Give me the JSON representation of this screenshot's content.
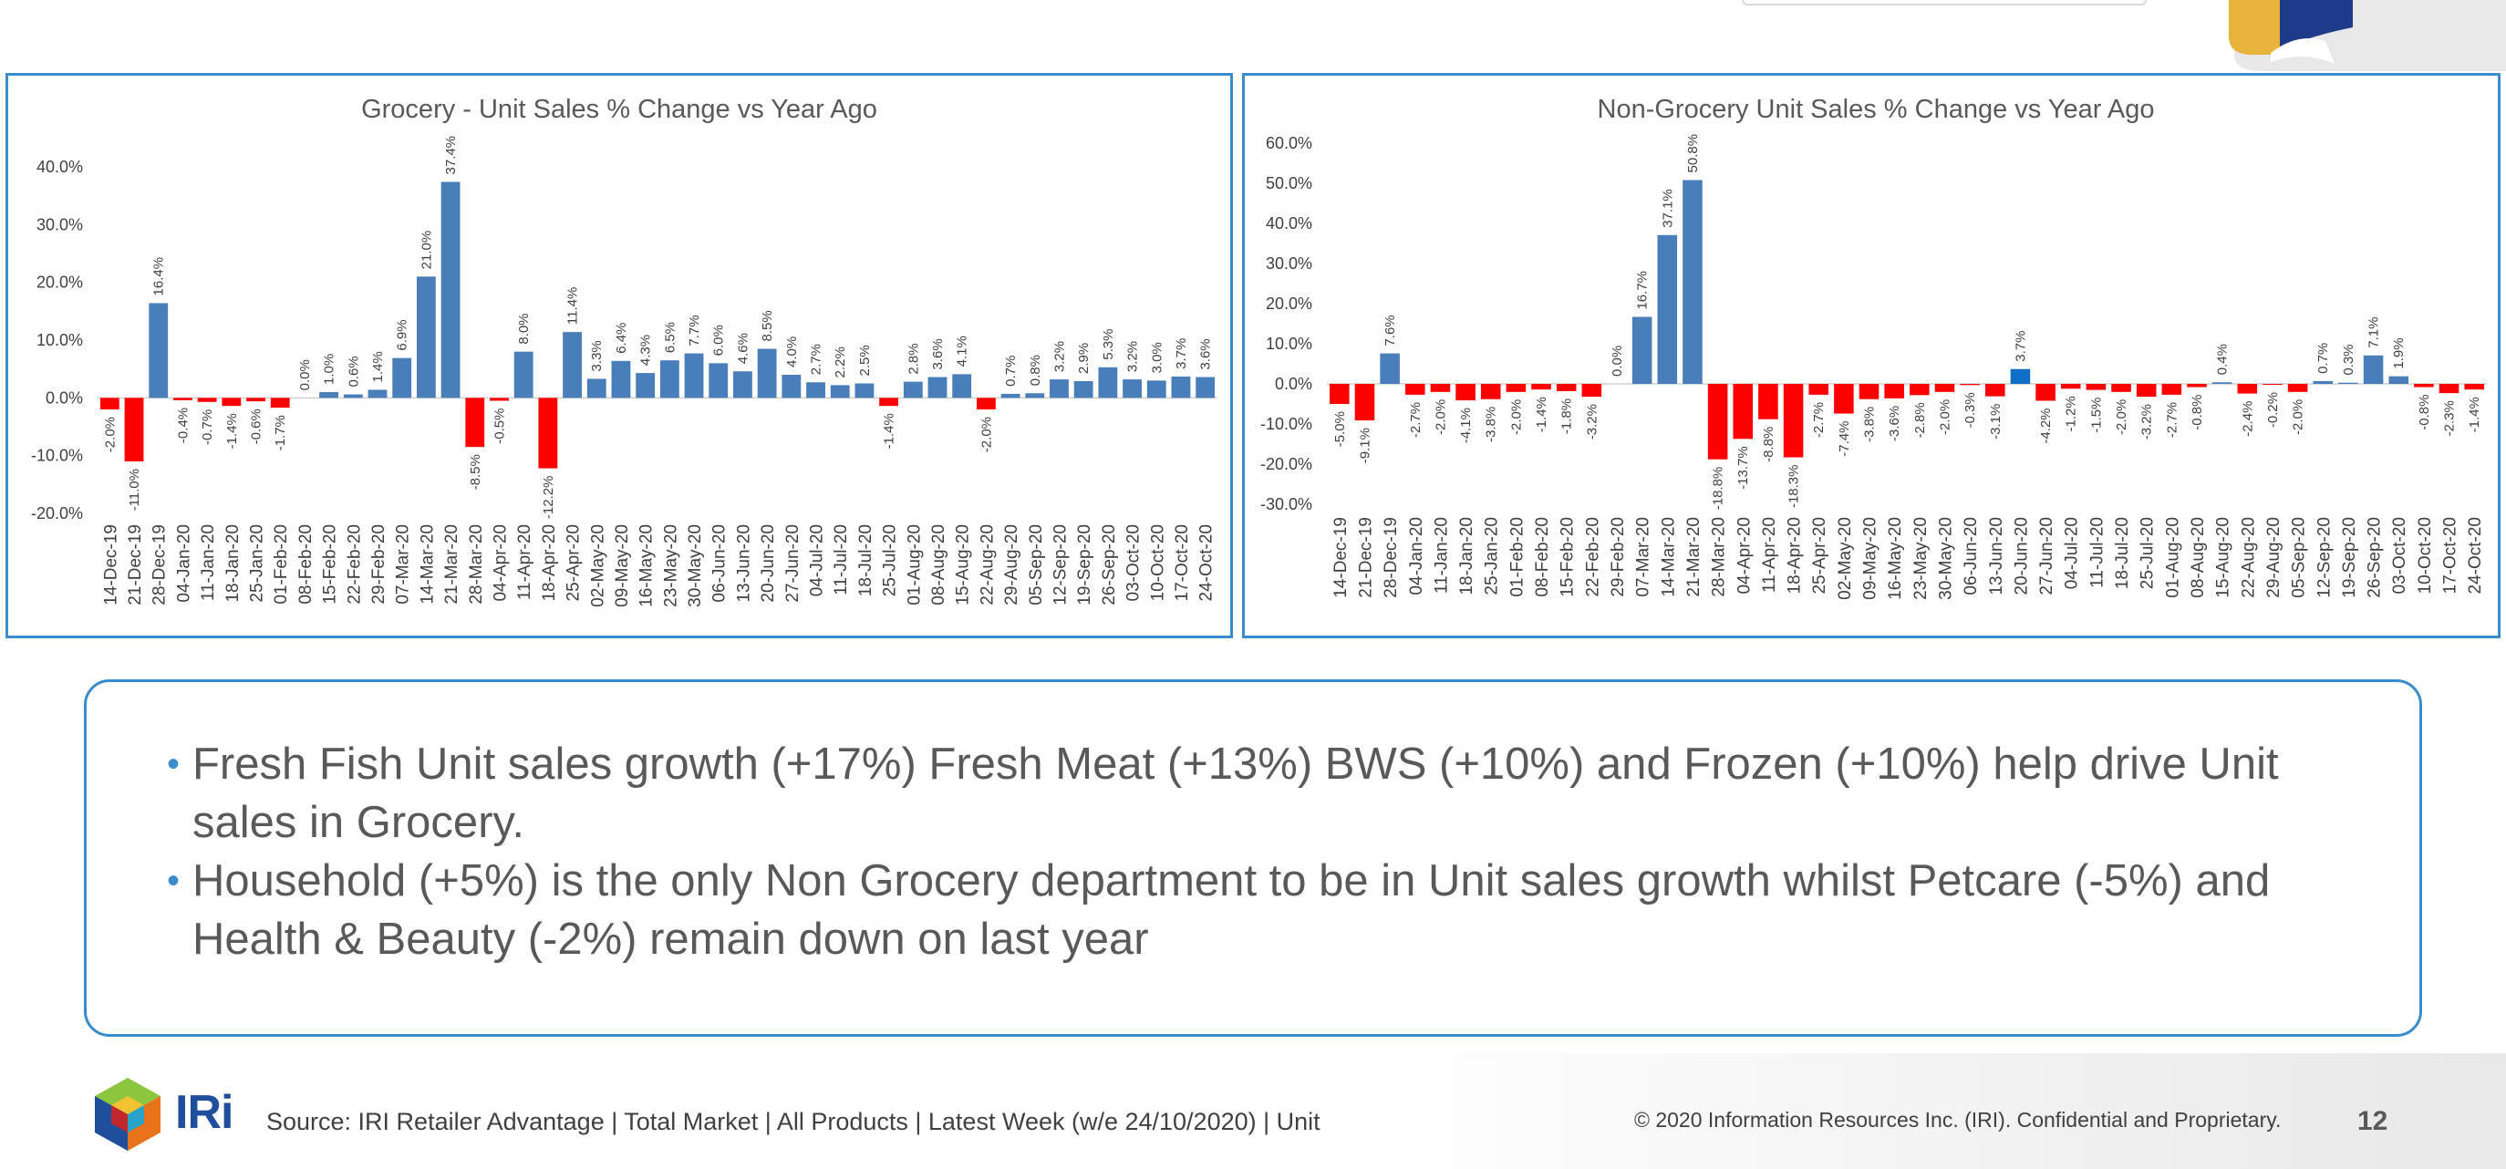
{
  "chart_data": [
    {
      "type": "bar",
      "title": "Grocery - Unit Sales % Change vs Year Ago",
      "ylim": [
        -20,
        40
      ],
      "yticks": [
        "-20.0%",
        "-10.0%",
        "0.0%",
        "10.0%",
        "20.0%",
        "30.0%",
        "40.0%"
      ],
      "ytick_values": [
        -20,
        -10,
        0,
        10,
        20,
        30,
        40
      ],
      "grid": false,
      "colors": {
        "positive": "#4a7ebb",
        "negative": "#ff0000"
      },
      "categories": [
        "14-Dec-19",
        "21-Dec-19",
        "28-Dec-19",
        "04-Jan-20",
        "11-Jan-20",
        "18-Jan-20",
        "25-Jan-20",
        "01-Feb-20",
        "08-Feb-20",
        "15-Feb-20",
        "22-Feb-20",
        "29-Feb-20",
        "07-Mar-20",
        "14-Mar-20",
        "21-Mar-20",
        "28-Mar-20",
        "04-Apr-20",
        "11-Apr-20",
        "18-Apr-20",
        "25-Apr-20",
        "02-May-20",
        "09-May-20",
        "16-May-20",
        "23-May-20",
        "30-May-20",
        "06-Jun-20",
        "13-Jun-20",
        "20-Jun-20",
        "27-Jun-20",
        "04-Jul-20",
        "11-Jul-20",
        "18-Jul-20",
        "25-Jul-20",
        "01-Aug-20",
        "08-Aug-20",
        "15-Aug-20",
        "22-Aug-20",
        "29-Aug-20",
        "05-Sep-20",
        "12-Sep-20",
        "19-Sep-20",
        "26-Sep-20",
        "03-Oct-20",
        "10-Oct-20",
        "17-Oct-20",
        "24-Oct-20"
      ],
      "values": [
        -2.0,
        -11.0,
        16.4,
        -0.4,
        -0.7,
        -1.4,
        -0.6,
        -1.7,
        0.0,
        1.0,
        0.6,
        1.4,
        6.9,
        21.0,
        37.4,
        -8.5,
        -0.5,
        8.0,
        -12.2,
        11.4,
        3.3,
        6.4,
        4.3,
        6.5,
        7.7,
        6.0,
        4.6,
        8.5,
        4.0,
        2.7,
        2.2,
        2.5,
        -1.4,
        2.8,
        3.6,
        4.1,
        -2.0,
        0.7,
        0.8,
        3.2,
        2.9,
        5.3,
        3.2,
        3.0,
        3.7,
        3.6
      ],
      "labels": [
        "-2.0%",
        "-11.0%",
        "16.4%",
        "-0.4%",
        "-0.7%",
        "-1.4%",
        "-0.6%",
        "-1.7%",
        "0.0%",
        "1.0%",
        "0.6%",
        "1.4%",
        "6.9%",
        "21.0%",
        "37.4%",
        "-8.5%",
        "-0.5%",
        "8.0%",
        "-12.2%",
        "11.4%",
        "3.3%",
        "6.4%",
        "4.3%",
        "6.5%",
        "7.7%",
        "6.0%",
        "4.6%",
        "8.5%",
        "4.0%",
        "2.7%",
        "2.2%",
        "2.5%",
        "-1.4%",
        "2.8%",
        "3.6%",
        "4.1%",
        "-2.0%",
        "0.7%",
        "0.8%",
        "3.2%",
        "2.9%",
        "5.3%",
        "3.2%",
        "3.0%",
        "3.7%",
        "3.6%"
      ]
    },
    {
      "type": "bar",
      "title": "Non-Grocery Unit Sales % Change vs Year Ago",
      "ylim": [
        -30,
        60
      ],
      "yticks": [
        "-30.0%",
        "-20.0%",
        "-10.0%",
        "0.0%",
        "10.0%",
        "20.0%",
        "30.0%",
        "40.0%",
        "50.0%",
        "60.0%"
      ],
      "ytick_values": [
        -30,
        -20,
        -10,
        0,
        10,
        20,
        30,
        40,
        50,
        60
      ],
      "grid": false,
      "colors": {
        "positive": "#4a7ebb",
        "negative": "#ff0000",
        "highlight": "#0f6fc6"
      },
      "highlight_index": 27,
      "categories": [
        "14-Dec-19",
        "21-Dec-19",
        "28-Dec-19",
        "04-Jan-20",
        "11-Jan-20",
        "18-Jan-20",
        "25-Jan-20",
        "01-Feb-20",
        "08-Feb-20",
        "15-Feb-20",
        "22-Feb-20",
        "29-Feb-20",
        "07-Mar-20",
        "14-Mar-20",
        "21-Mar-20",
        "28-Mar-20",
        "04-Apr-20",
        "11-Apr-20",
        "18-Apr-20",
        "25-Apr-20",
        "02-May-20",
        "09-May-20",
        "16-May-20",
        "23-May-20",
        "30-May-20",
        "06-Jun-20",
        "13-Jun-20",
        "20-Jun-20",
        "27-Jun-20",
        "04-Jul-20",
        "11-Jul-20",
        "18-Jul-20",
        "25-Jul-20",
        "01-Aug-20",
        "08-Aug-20",
        "15-Aug-20",
        "22-Aug-20",
        "29-Aug-20",
        "05-Sep-20",
        "12-Sep-20",
        "19-Sep-20",
        "26-Sep-20",
        "03-Oct-20",
        "10-Oct-20",
        "17-Oct-20",
        "24-Oct-20"
      ],
      "values": [
        -5.0,
        -9.1,
        7.6,
        -2.7,
        -2.0,
        -4.1,
        -3.8,
        -2.0,
        -1.4,
        -1.8,
        -3.2,
        0.0,
        16.7,
        37.1,
        50.8,
        -18.8,
        -13.7,
        -8.8,
        -18.3,
        -2.7,
        -7.4,
        -3.8,
        -3.6,
        -2.8,
        -2.0,
        -0.3,
        -3.1,
        3.7,
        -4.2,
        -1.2,
        -1.5,
        -2.0,
        -3.2,
        -2.7,
        -0.8,
        0.4,
        -2.4,
        -0.2,
        -2.0,
        0.7,
        0.3,
        7.1,
        1.9,
        -0.8,
        -2.3,
        -1.4
      ],
      "labels": [
        "-5.0%",
        "-9.1%",
        "7.6%",
        "-2.7%",
        "-2.0%",
        "-4.1%",
        "-3.8%",
        "-2.0%",
        "-1.4%",
        "-1.8%",
        "-3.2%",
        "0.0%",
        "16.7%",
        "37.1%",
        "50.8%",
        "-18.8%",
        "-13.7%",
        "-8.8%",
        "-18.3%",
        "-2.7%",
        "-7.4%",
        "-3.8%",
        "-3.6%",
        "-2.8%",
        "-2.0%",
        "-0.3%",
        "-3.1%",
        "3.7%",
        "-4.2%",
        "-1.2%",
        "-1.5%",
        "-2.0%",
        "-3.2%",
        "-2.7%",
        "-0.8%",
        "0.4%",
        "-2.4%",
        "-0.2%",
        "-2.0%",
        "0.7%",
        "0.3%",
        "7.1%",
        "1.9%",
        "-0.8%",
        "-2.3%",
        "-1.4%"
      ]
    }
  ],
  "notes": {
    "bullets": [
      "Fresh Fish Unit sales growth (+17%) Fresh Meat (+13%) BWS (+10%) and Frozen (+10%) help drive Unit sales in Grocery.",
      "Household (+5%) is the only Non Grocery department to be in Unit sales growth whilst Petcare (-5%) and Health & Beauty (-2%) remain down on last year"
    ],
    "bullet_glyph": "•"
  },
  "footer": {
    "brand": "IRi",
    "source": "Source: IRI Retailer Advantage | Total Market | All Products | Latest Week (w/e 24/10/2020) | Unit",
    "copyright": "© 2020 Information Resources Inc. (IRI). Confidential and Proprietary.",
    "page_number": "12"
  },
  "icons": {
    "iri_logo": "iri-cube-logo-icon",
    "corner_logo": "corner-brand-logo-icon"
  }
}
